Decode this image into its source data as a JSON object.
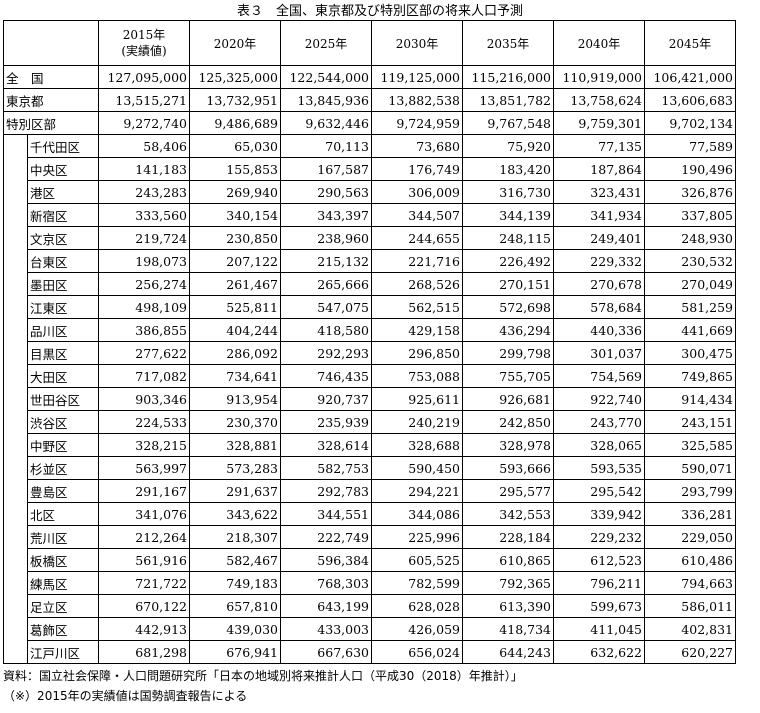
{
  "title": "表３　全国、東京都及び特別区部の将来人口予測",
  "header": {
    "col1_line1": "2015年",
    "col1_line2": "(実績値)",
    "years": [
      "2020年",
      "2025年",
      "2030年",
      "2035年",
      "2040年",
      "2045年"
    ]
  },
  "top_rows": [
    {
      "name": "全　国",
      "values": [
        "127,095,000",
        "125,325,000",
        "122,544,000",
        "119,125,000",
        "115,216,000",
        "110,919,000",
        "106,421,000"
      ]
    },
    {
      "name": "東京都",
      "values": [
        "13,515,271",
        "13,732,951",
        "13,845,936",
        "13,882,538",
        "13,851,782",
        "13,758,624",
        "13,606,683"
      ]
    },
    {
      "name": "特別区部",
      "values": [
        "9,272,740",
        "9,486,689",
        "9,632,446",
        "9,724,959",
        "9,767,548",
        "9,759,301",
        "9,702,134"
      ]
    }
  ],
  "wards": [
    {
      "name": "千代田区",
      "values": [
        "58,406",
        "65,030",
        "70,113",
        "73,680",
        "75,920",
        "77,135",
        "77,589"
      ]
    },
    {
      "name": "中央区",
      "values": [
        "141,183",
        "155,853",
        "167,587",
        "176,749",
        "183,420",
        "187,864",
        "190,496"
      ]
    },
    {
      "name": "港区",
      "values": [
        "243,283",
        "269,940",
        "290,563",
        "306,009",
        "316,730",
        "323,431",
        "326,876"
      ]
    },
    {
      "name": "新宿区",
      "values": [
        "333,560",
        "340,154",
        "343,397",
        "344,507",
        "344,139",
        "341,934",
        "337,805"
      ]
    },
    {
      "name": "文京区",
      "values": [
        "219,724",
        "230,850",
        "238,960",
        "244,655",
        "248,115",
        "249,401",
        "248,930"
      ]
    },
    {
      "name": "台東区",
      "values": [
        "198,073",
        "207,122",
        "215,132",
        "221,716",
        "226,492",
        "229,332",
        "230,532"
      ]
    },
    {
      "name": "墨田区",
      "values": [
        "256,274",
        "261,467",
        "265,666",
        "268,526",
        "270,151",
        "270,678",
        "270,049"
      ]
    },
    {
      "name": "江東区",
      "values": [
        "498,109",
        "525,811",
        "547,075",
        "562,515",
        "572,698",
        "578,684",
        "581,259"
      ]
    },
    {
      "name": "品川区",
      "values": [
        "386,855",
        "404,244",
        "418,580",
        "429,158",
        "436,294",
        "440,336",
        "441,669"
      ]
    },
    {
      "name": "目黒区",
      "values": [
        "277,622",
        "286,092",
        "292,293",
        "296,850",
        "299,798",
        "301,037",
        "300,475"
      ]
    },
    {
      "name": "大田区",
      "values": [
        "717,082",
        "734,641",
        "746,435",
        "753,088",
        "755,705",
        "754,569",
        "749,865"
      ]
    },
    {
      "name": "世田谷区",
      "values": [
        "903,346",
        "913,954",
        "920,737",
        "925,611",
        "926,681",
        "922,740",
        "914,434"
      ]
    },
    {
      "name": "渋谷区",
      "values": [
        "224,533",
        "230,370",
        "235,939",
        "240,219",
        "242,850",
        "243,770",
        "243,151"
      ]
    },
    {
      "name": "中野区",
      "values": [
        "328,215",
        "328,881",
        "328,614",
        "328,688",
        "328,978",
        "328,065",
        "325,585"
      ]
    },
    {
      "name": "杉並区",
      "values": [
        "563,997",
        "573,283",
        "582,753",
        "590,450",
        "593,666",
        "593,535",
        "590,071"
      ]
    },
    {
      "name": "豊島区",
      "values": [
        "291,167",
        "291,637",
        "292,783",
        "294,221",
        "295,577",
        "295,542",
        "293,799"
      ]
    },
    {
      "name": "北区",
      "values": [
        "341,076",
        "343,622",
        "344,551",
        "344,086",
        "342,553",
        "339,942",
        "336,281"
      ]
    },
    {
      "name": "荒川区",
      "values": [
        "212,264",
        "218,307",
        "222,749",
        "225,996",
        "228,184",
        "229,232",
        "229,050"
      ]
    },
    {
      "name": "板橋区",
      "values": [
        "561,916",
        "582,467",
        "596,384",
        "605,525",
        "610,865",
        "612,523",
        "610,486"
      ]
    },
    {
      "name": "練馬区",
      "values": [
        "721,722",
        "749,183",
        "768,303",
        "782,599",
        "792,365",
        "796,211",
        "794,663"
      ]
    },
    {
      "name": "足立区",
      "values": [
        "670,122",
        "657,810",
        "643,199",
        "628,028",
        "613,390",
        "599,673",
        "586,011"
      ]
    },
    {
      "name": "葛飾区",
      "values": [
        "442,913",
        "439,030",
        "433,003",
        "426,059",
        "418,734",
        "411,045",
        "402,831"
      ]
    },
    {
      "name": "江戸川区",
      "values": [
        "681,298",
        "676,941",
        "667,630",
        "656,024",
        "644,243",
        "632,622",
        "620,227"
      ]
    }
  ],
  "notes": {
    "source": "資料：国立社会保障・人口問題研究所「日本の地域別将来推計人口（平成30（2018）年推計）」",
    "note": "（※）2015年の実績値は国勢調査報告による"
  }
}
